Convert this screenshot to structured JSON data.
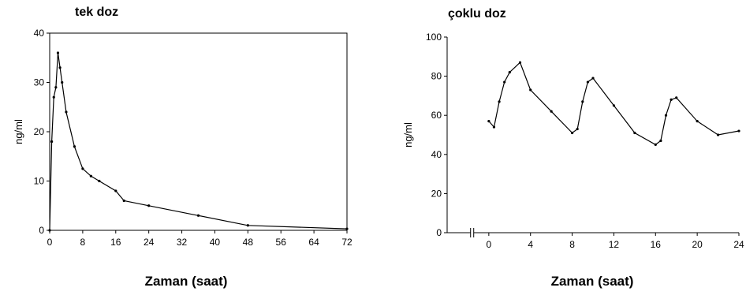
{
  "chart_data": [
    {
      "type": "line",
      "title": "tek doz",
      "xlabel": "Zaman (saat)",
      "ylabel": "ng/ml",
      "xlim": [
        0,
        72
      ],
      "ylim": [
        0,
        40
      ],
      "xticks": [
        0,
        8,
        16,
        24,
        32,
        40,
        48,
        56,
        64,
        72
      ],
      "yticks": [
        0,
        10,
        20,
        30,
        40
      ],
      "grid": false,
      "series": [
        {
          "x": [
            0,
            0.5,
            1,
            1.5,
            2,
            2.5,
            3,
            4,
            6,
            8,
            10,
            12,
            16,
            18,
            24,
            36,
            48,
            72
          ],
          "y": [
            0,
            18,
            27,
            29,
            36,
            33,
            30,
            24,
            17,
            12.5,
            11,
            10,
            8,
            6,
            5,
            3,
            1,
            0.3
          ]
        }
      ]
    },
    {
      "type": "line",
      "title": "çoklu doz",
      "xlabel": "Zaman (saat)",
      "ylabel": "ng/ml",
      "xlim": [
        -4,
        24
      ],
      "ylim": [
        0,
        100
      ],
      "xticks": [
        0,
        4,
        8,
        12,
        16,
        20,
        24
      ],
      "yticks": [
        0,
        20,
        40,
        60,
        80,
        100
      ],
      "axis_break": true,
      "grid": false,
      "series": [
        {
          "x": [
            0,
            0.5,
            1,
            1.5,
            2,
            3,
            4,
            6,
            8,
            8.5,
            9,
            9.5,
            10,
            12,
            14,
            16,
            16.5,
            17,
            17.5,
            18,
            20,
            22,
            24
          ],
          "y": [
            57,
            54,
            67,
            77,
            82,
            87,
            73,
            62,
            51,
            53,
            67,
            77,
            79,
            65,
            51,
            45,
            47,
            60,
            68,
            69,
            57,
            50,
            52
          ]
        }
      ]
    }
  ]
}
